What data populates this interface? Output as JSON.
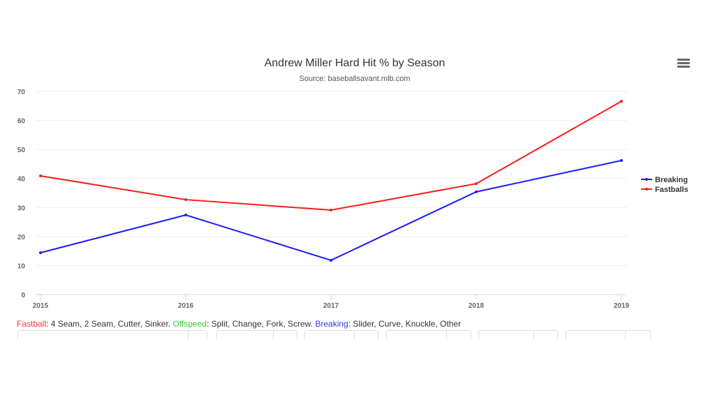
{
  "chart_data": {
    "type": "line",
    "title": "Andrew Miller Hard Hit % by Season",
    "subtitle": "Source: baseballsavant.mlb.com",
    "xlabel": "",
    "ylabel": "",
    "x": [
      "2015",
      "2016",
      "2017",
      "2018",
      "2019"
    ],
    "ylim": [
      0,
      70
    ],
    "yticks": [
      "0",
      "10",
      "20",
      "30",
      "40",
      "50",
      "60",
      "70"
    ],
    "grid": true,
    "legend_position": "right",
    "series": [
      {
        "name": "Breaking",
        "color": "#1a1aff",
        "values": [
          14.4,
          27.4,
          11.8,
          35.4,
          46.2
        ]
      },
      {
        "name": "Fastballs",
        "color": "#ff1a1a",
        "values": [
          40.9,
          32.7,
          29.1,
          38.2,
          66.6
        ]
      }
    ]
  },
  "footer": {
    "fastball_label": "Fastball",
    "fastball_desc": ": 4 Seam, 2 Seam, Cutter, Sinker. ",
    "offspeed_label": "Offspeed",
    "offspeed_desc": ": Split, Change, Fork, Screw. ",
    "breaking_label": "Breaking",
    "breaking_desc": ": Slider, Curve, Knuckle, Other",
    "colors": {
      "fastball": "#ff3333",
      "offspeed": "#33cc33",
      "breaking": "#3333ff"
    }
  },
  "menu_icon": "hamburger-menu-icon"
}
